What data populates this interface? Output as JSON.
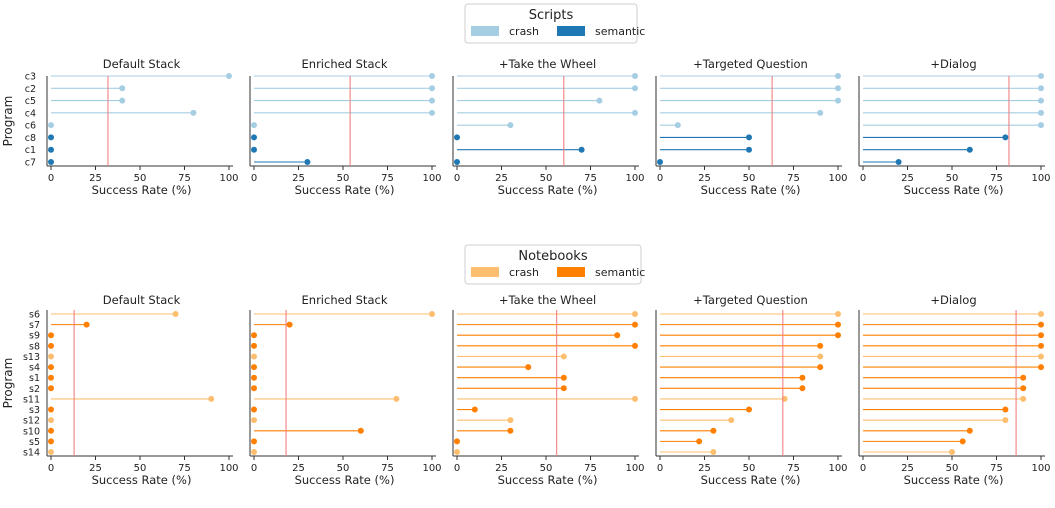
{
  "figure": {
    "xlabel": "Success Rate (%)",
    "ylabel": "Program",
    "xticks": [
      0,
      25,
      50,
      75,
      100
    ],
    "panel_titles": [
      "Default Stack",
      "Enriched Stack",
      "+Take the Wheel",
      "+Targeted Question",
      "+Dialog"
    ],
    "threshold_color": "#f08080"
  },
  "chart_data": [
    {
      "type": "lollipop",
      "legend_title": "Scripts",
      "categories": [
        "c3",
        "c2",
        "c5",
        "c4",
        "c6",
        "c8",
        "c1",
        "c7"
      ],
      "category_type": [
        "crash",
        "crash",
        "crash",
        "crash",
        "crash",
        "semantic",
        "semantic",
        "semantic"
      ],
      "legend": [
        {
          "label": "crash",
          "color": "#a6cee3"
        },
        {
          "label": "semantic",
          "color": "#1f78b4"
        }
      ],
      "xlim": [
        0,
        100
      ],
      "panels": [
        {
          "title": "Default Stack",
          "values": [
            100,
            40,
            40,
            80,
            0,
            0,
            0,
            0
          ],
          "threshold": 32
        },
        {
          "title": "Enriched Stack",
          "values": [
            100,
            100,
            100,
            100,
            0,
            0,
            0,
            30
          ],
          "threshold": 54
        },
        {
          "title": "+Take the Wheel",
          "values": [
            100,
            100,
            80,
            100,
            30,
            0,
            70,
            0
          ],
          "threshold": 60
        },
        {
          "title": "+Targeted Question",
          "values": [
            100,
            100,
            100,
            90,
            10,
            50,
            50,
            0
          ],
          "threshold": 63
        },
        {
          "title": "+Dialog",
          "values": [
            100,
            100,
            100,
            100,
            100,
            80,
            60,
            20
          ],
          "threshold": 82
        }
      ]
    },
    {
      "type": "lollipop",
      "legend_title": "Notebooks",
      "categories": [
        "s6",
        "s7",
        "s9",
        "s8",
        "s13",
        "s4",
        "s1",
        "s2",
        "s11",
        "s3",
        "s12",
        "s10",
        "s5",
        "s14"
      ],
      "category_type": [
        "crash",
        "semantic",
        "semantic",
        "semantic",
        "crash",
        "semantic",
        "semantic",
        "semantic",
        "crash",
        "semantic",
        "crash",
        "semantic",
        "semantic",
        "crash"
      ],
      "legend": [
        {
          "label": "crash",
          "color": "#fdbf6f"
        },
        {
          "label": "semantic",
          "color": "#ff7f00"
        }
      ],
      "xlim": [
        0,
        100
      ],
      "panels": [
        {
          "title": "Default Stack",
          "values": [
            70,
            20,
            0,
            0,
            0,
            0,
            0,
            0,
            90,
            0,
            0,
            0,
            0,
            0
          ],
          "threshold": 13
        },
        {
          "title": "Enriched Stack",
          "values": [
            100,
            20,
            0,
            0,
            0,
            0,
            0,
            0,
            80,
            0,
            0,
            60,
            0,
            0
          ],
          "threshold": 18
        },
        {
          "title": "+Take the Wheel",
          "values": [
            100,
            100,
            90,
            100,
            60,
            40,
            60,
            60,
            100,
            10,
            30,
            30,
            0,
            0
          ],
          "threshold": 56
        },
        {
          "title": "+Targeted Question",
          "values": [
            100,
            100,
            100,
            90,
            90,
            90,
            80,
            80,
            70,
            50,
            40,
            30,
            22,
            30
          ],
          "threshold": 69
        },
        {
          "title": "+Dialog",
          "values": [
            100,
            100,
            100,
            100,
            100,
            100,
            90,
            90,
            90,
            80,
            80,
            60,
            56,
            50
          ],
          "threshold": 86
        }
      ]
    }
  ]
}
